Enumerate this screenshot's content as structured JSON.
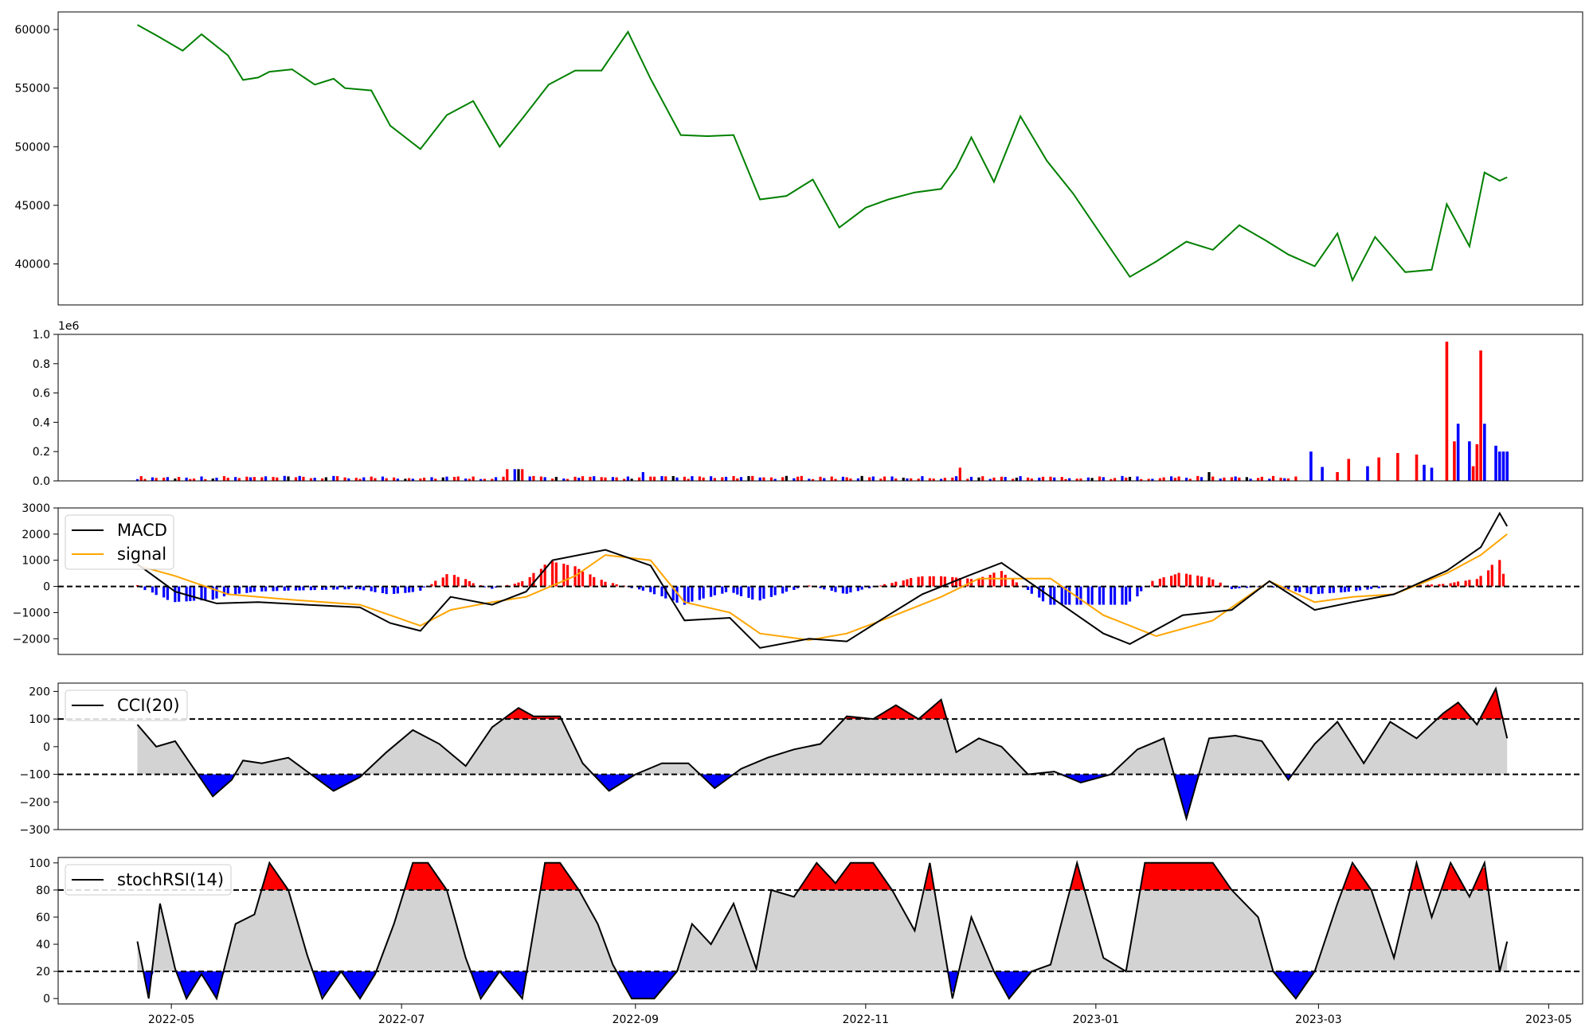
{
  "chart_data": [
    {
      "type": "line",
      "panel": "price",
      "x_range": [
        "2022-04-01",
        "2023-05-10"
      ],
      "ylim": [
        36500,
        61500
      ],
      "yticks": [
        40000,
        45000,
        50000,
        55000,
        60000
      ],
      "ytick_labels": [
        "40000",
        "45000",
        "50000",
        "55000",
        "60000"
      ],
      "color": "#008000",
      "x": [
        "2022-04-22",
        "2022-04-27",
        "2022-05-04",
        "2022-05-09",
        "2022-05-16",
        "2022-05-20",
        "2022-05-24",
        "2022-05-27",
        "2022-06-02",
        "2022-06-08",
        "2022-06-13",
        "2022-06-16",
        "2022-06-23",
        "2022-06-28",
        "2022-07-06",
        "2022-07-13",
        "2022-07-20",
        "2022-07-27",
        "2022-08-02",
        "2022-08-09",
        "2022-08-16",
        "2022-08-23",
        "2022-08-30",
        "2022-09-05",
        "2022-09-13",
        "2022-09-20",
        "2022-09-27",
        "2022-10-04",
        "2022-10-11",
        "2022-10-18",
        "2022-10-25",
        "2022-11-01",
        "2022-11-07",
        "2022-11-14",
        "2022-11-21",
        "2022-11-25",
        "2022-11-29",
        "2022-12-05",
        "2022-12-12",
        "2022-12-19",
        "2022-12-26",
        "2023-01-03",
        "2023-01-10",
        "2023-01-17",
        "2023-01-25",
        "2023-02-01",
        "2023-02-08",
        "2023-02-15",
        "2023-02-21",
        "2023-02-28",
        "2023-03-06",
        "2023-03-10",
        "2023-03-16",
        "2023-03-24",
        "2023-03-31",
        "2023-04-04",
        "2023-04-10",
        "2023-04-14",
        "2023-04-18",
        "2023-04-20"
      ],
      "values": [
        60400,
        59500,
        58200,
        59600,
        57800,
        55700,
        55900,
        56400,
        56600,
        55300,
        55800,
        55000,
        54800,
        51800,
        49800,
        52700,
        53900,
        50000,
        52400,
        55300,
        56500,
        56500,
        59800,
        55800,
        51000,
        50900,
        51000,
        45500,
        45800,
        47200,
        43100,
        44800,
        45500,
        46100,
        46400,
        48200,
        50800,
        47000,
        52600,
        48800,
        46000,
        42200,
        38900,
        40200,
        41900,
        41200,
        43300,
        42000,
        40800,
        39800,
        42600,
        38600,
        42300,
        39300,
        39500,
        45100,
        41500,
        47800,
        47100,
        47400
      ]
    },
    {
      "type": "bar",
      "panel": "volume",
      "x_range": [
        "2022-04-01",
        "2023-05-10"
      ],
      "ylim": [
        0,
        1000000
      ],
      "yticks": [
        0,
        0.2,
        0.4,
        0.6,
        0.8,
        1.0
      ],
      "ytick_labels": [
        "0.0",
        "0.2",
        "0.4",
        "0.6",
        "0.8",
        "1.0"
      ],
      "offset_label": "1e6",
      "colors": {
        "up": "#ff0000",
        "down": "#0000ff",
        "flat": "#000000"
      },
      "x": [
        "2023-02-27",
        "2023-03-02",
        "2023-03-06",
        "2023-03-09",
        "2023-03-14",
        "2023-03-17",
        "2023-03-22",
        "2023-03-27",
        "2023-03-29",
        "2023-03-31",
        "2023-04-04",
        "2023-04-06",
        "2023-04-07",
        "2023-04-10",
        "2023-04-11",
        "2023-04-12",
        "2023-04-13",
        "2023-04-14",
        "2023-04-17",
        "2023-04-18",
        "2023-04-19",
        "2023-04-20"
      ],
      "values": [
        200000,
        95000,
        60000,
        150000,
        100000,
        160000,
        190000,
        180000,
        110000,
        90000,
        950000,
        270000,
        390000,
        270000,
        100000,
        250000,
        890000,
        390000,
        240000,
        200000,
        200000,
        200000
      ],
      "direction": [
        "down",
        "down",
        "red",
        "red",
        "down",
        "red",
        "red",
        "red",
        "down",
        "down",
        "up",
        "up",
        "down",
        "down",
        "up",
        "up",
        "up",
        "down",
        "down",
        "down",
        "down",
        "down"
      ]
    },
    {
      "type": "line",
      "panel": "macd",
      "x_range": [
        "2022-04-01",
        "2023-05-10"
      ],
      "ylim": [
        -2600,
        3000
      ],
      "yticks": [
        -2000,
        -1000,
        0,
        1000,
        2000,
        3000
      ],
      "ytick_labels": [
        "−2000",
        "−1000",
        "0",
        "1000",
        "2000",
        "3000"
      ],
      "zero_line": 0,
      "histogram_colors": {
        "positive": "#ff0000",
        "negative": "#0000ff"
      },
      "series": [
        {
          "name": "MACD",
          "color": "#000000",
          "x": [
            "2022-04-22",
            "2022-05-02",
            "2022-05-13",
            "2022-05-24",
            "2022-06-06",
            "2022-06-20",
            "2022-06-28",
            "2022-07-06",
            "2022-07-14",
            "2022-07-25",
            "2022-08-03",
            "2022-08-10",
            "2022-08-24",
            "2022-09-05",
            "2022-09-14",
            "2022-09-26",
            "2022-10-04",
            "2022-10-17",
            "2022-10-27",
            "2022-11-07",
            "2022-11-16",
            "2022-11-28",
            "2022-12-07",
            "2022-12-20",
            "2023-01-03",
            "2023-01-10",
            "2023-01-24",
            "2023-02-06",
            "2023-02-16",
            "2023-02-28",
            "2023-03-10",
            "2023-03-21",
            "2023-04-04",
            "2023-04-13",
            "2023-04-18",
            "2023-04-20"
          ],
          "values": [
            850,
            -200,
            -650,
            -600,
            -700,
            -800,
            -1400,
            -1700,
            -400,
            -700,
            -200,
            1000,
            1400,
            800,
            -1300,
            -1200,
            -2350,
            -2000,
            -2100,
            -1100,
            -300,
            400,
            900,
            -400,
            -1800,
            -2200,
            -1100,
            -900,
            200,
            -900,
            -600,
            -300,
            600,
            1500,
            2800,
            2300
          ]
        },
        {
          "name": "signal",
          "color": "#ffa500",
          "x": [
            "2022-04-22",
            "2022-05-02",
            "2022-05-16",
            "2022-06-01",
            "2022-06-20",
            "2022-06-28",
            "2022-07-06",
            "2022-07-14",
            "2022-07-25",
            "2022-08-03",
            "2022-08-16",
            "2022-08-24",
            "2022-09-05",
            "2022-09-14",
            "2022-09-26",
            "2022-10-04",
            "2022-10-17",
            "2022-10-27",
            "2022-11-07",
            "2022-11-21",
            "2022-12-01",
            "2022-12-20",
            "2023-01-03",
            "2023-01-17",
            "2023-02-01",
            "2023-02-16",
            "2023-02-28",
            "2023-03-10",
            "2023-03-21",
            "2023-04-04",
            "2023-04-13",
            "2023-04-20"
          ],
          "values": [
            800,
            400,
            -300,
            -500,
            -700,
            -1100,
            -1500,
            -900,
            -600,
            -400,
            400,
            1200,
            1000,
            -600,
            -1000,
            -1800,
            -2050,
            -1800,
            -1200,
            -400,
            300,
            300,
            -1100,
            -1900,
            -1300,
            200,
            -600,
            -400,
            -300,
            500,
            1200,
            2000
          ]
        }
      ]
    },
    {
      "type": "line",
      "panel": "cci",
      "x_range": [
        "2022-04-01",
        "2023-05-10"
      ],
      "ylim": [
        -300,
        230
      ],
      "yticks": [
        -300,
        -200,
        -100,
        0,
        100,
        200
      ],
      "ytick_labels": [
        "−300",
        "−200",
        "−100",
        "0",
        "100",
        "200"
      ],
      "thresholds": [
        100,
        -100
      ],
      "band_color": "#d3d3d3",
      "fill_colors": {
        "above": "#ff0000",
        "below": "#0000ff"
      },
      "series": [
        {
          "name": "CCI(20)",
          "color": "#000000",
          "x": [
            "2022-04-22",
            "2022-04-27",
            "2022-05-02",
            "2022-05-06",
            "2022-05-12",
            "2022-05-17",
            "2022-05-20",
            "2022-05-25",
            "2022-06-01",
            "2022-06-07",
            "2022-06-13",
            "2022-06-20",
            "2022-06-27",
            "2022-07-04",
            "2022-07-11",
            "2022-07-18",
            "2022-07-25",
            "2022-08-01",
            "2022-08-05",
            "2022-08-12",
            "2022-08-18",
            "2022-08-25",
            "2022-09-01",
            "2022-09-08",
            "2022-09-15",
            "2022-09-22",
            "2022-09-29",
            "2022-10-06",
            "2022-10-13",
            "2022-10-20",
            "2022-10-27",
            "2022-11-03",
            "2022-11-09",
            "2022-11-15",
            "2022-11-21",
            "2022-11-25",
            "2022-12-01",
            "2022-12-07",
            "2022-12-14",
            "2022-12-21",
            "2022-12-28",
            "2023-01-05",
            "2023-01-12",
            "2023-01-19",
            "2023-01-25",
            "2023-01-31",
            "2023-02-07",
            "2023-02-14",
            "2023-02-21",
            "2023-02-28",
            "2023-03-06",
            "2023-03-13",
            "2023-03-20",
            "2023-03-27",
            "2023-04-03",
            "2023-04-07",
            "2023-04-12",
            "2023-04-17",
            "2023-04-20"
          ],
          "values": [
            80,
            0,
            20,
            -60,
            -180,
            -120,
            -50,
            -60,
            -40,
            -100,
            -160,
            -110,
            -20,
            60,
            10,
            -70,
            70,
            140,
            110,
            110,
            -60,
            -160,
            -100,
            -60,
            -60,
            -150,
            -80,
            -40,
            -10,
            10,
            110,
            100,
            150,
            100,
            170,
            -20,
            30,
            0,
            -100,
            -90,
            -130,
            -100,
            -10,
            30,
            -260,
            30,
            40,
            20,
            -120,
            10,
            90,
            -60,
            90,
            30,
            120,
            160,
            80,
            210,
            30
          ]
        }
      ]
    },
    {
      "type": "line",
      "panel": "stochrsi",
      "x_range": [
        "2022-04-01",
        "2023-05-10"
      ],
      "ylim": [
        -4,
        104
      ],
      "yticks": [
        0,
        20,
        40,
        60,
        80,
        100
      ],
      "ytick_labels": [
        "0",
        "20",
        "40",
        "60",
        "80",
        "100"
      ],
      "thresholds": [
        80,
        20
      ],
      "band_color": "#d3d3d3",
      "fill_colors": {
        "above": "#ff0000",
        "below": "#0000ff"
      },
      "xtick_labels": [
        "2022-05",
        "2022-07",
        "2022-09",
        "2022-11",
        "2023-01",
        "2023-03",
        "2023-05"
      ],
      "xtick_dates": [
        "2022-05-01",
        "2022-07-01",
        "2022-09-01",
        "2022-11-01",
        "2023-01-01",
        "2023-03-01",
        "2023-05-01"
      ],
      "series": [
        {
          "name": "stochRSI(14)",
          "color": "#000000",
          "x": [
            "2022-04-22",
            "2022-04-25",
            "2022-04-28",
            "2022-05-02",
            "2022-05-05",
            "2022-05-09",
            "2022-05-13",
            "2022-05-18",
            "2022-05-23",
            "2022-05-27",
            "2022-06-01",
            "2022-06-06",
            "2022-06-10",
            "2022-06-15",
            "2022-06-20",
            "2022-06-24",
            "2022-06-29",
            "2022-07-04",
            "2022-07-08",
            "2022-07-13",
            "2022-07-18",
            "2022-07-22",
            "2022-07-27",
            "2022-08-02",
            "2022-08-08",
            "2022-08-12",
            "2022-08-17",
            "2022-08-22",
            "2022-08-26",
            "2022-08-31",
            "2022-09-06",
            "2022-09-12",
            "2022-09-16",
            "2022-09-21",
            "2022-09-27",
            "2022-10-03",
            "2022-10-07",
            "2022-10-13",
            "2022-10-19",
            "2022-10-24",
            "2022-10-28",
            "2022-11-03",
            "2022-11-08",
            "2022-11-14",
            "2022-11-18",
            "2022-11-24",
            "2022-11-29",
            "2022-12-05",
            "2022-12-09",
            "2022-12-15",
            "2022-12-20",
            "2022-12-27",
            "2023-01-03",
            "2023-01-09",
            "2023-01-14",
            "2023-01-20",
            "2023-01-26",
            "2023-02-01",
            "2023-02-06",
            "2023-02-13",
            "2023-02-17",
            "2023-02-23",
            "2023-02-28",
            "2023-03-06",
            "2023-03-10",
            "2023-03-15",
            "2023-03-21",
            "2023-03-27",
            "2023-03-31",
            "2023-04-05",
            "2023-04-10",
            "2023-04-14",
            "2023-04-18",
            "2023-04-20"
          ],
          "values": [
            42,
            0,
            70,
            22,
            0,
            18,
            0,
            55,
            62,
            100,
            80,
            32,
            0,
            20,
            0,
            18,
            55,
            100,
            100,
            80,
            30,
            0,
            20,
            0,
            100,
            100,
            80,
            55,
            25,
            0,
            0,
            20,
            55,
            40,
            70,
            22,
            80,
            75,
            100,
            85,
            100,
            100,
            80,
            50,
            100,
            0,
            60,
            20,
            0,
            20,
            25,
            100,
            30,
            20,
            100,
            100,
            100,
            100,
            80,
            60,
            20,
            0,
            20,
            70,
            100,
            80,
            30,
            100,
            60,
            100,
            75,
            100,
            20,
            42
          ]
        }
      ]
    }
  ]
}
